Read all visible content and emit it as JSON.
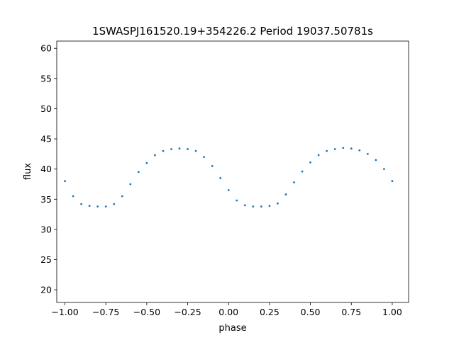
{
  "chart_data": {
    "type": "scatter",
    "title": "1SWASPJ161520.19+354226.2 Period 19037.50781s",
    "xlabel": "phase",
    "ylabel": "flux",
    "xlim": [
      -1.05,
      1.1
    ],
    "ylim": [
      17.9,
      61.2
    ],
    "xticks": [
      -1.0,
      -0.75,
      -0.5,
      -0.25,
      0.0,
      0.25,
      0.5,
      0.75,
      1.0
    ],
    "xtick_labels": [
      "−1.00",
      "−0.75",
      "−0.50",
      "−0.25",
      "0.00",
      "0.25",
      "0.50",
      "0.75",
      "1.00"
    ],
    "yticks": [
      20,
      25,
      30,
      35,
      40,
      45,
      50,
      55,
      60
    ],
    "ytick_labels": [
      "20",
      "25",
      "30",
      "35",
      "40",
      "45",
      "50",
      "55",
      "60"
    ],
    "grid": false,
    "marker_color": "#1f77b4",
    "series": [
      {
        "x": [
          -1.0,
          -0.95,
          -0.9,
          -0.85,
          -0.8,
          -0.75,
          -0.7,
          -0.65,
          -0.6,
          -0.55,
          -0.5,
          -0.45,
          -0.4,
          -0.35,
          -0.3,
          -0.25,
          -0.2,
          -0.15,
          -0.1,
          -0.05,
          0.0,
          0.05,
          0.1,
          0.15,
          0.2,
          0.25,
          0.3,
          0.35,
          0.4,
          0.45,
          0.5,
          0.55,
          0.6,
          0.65,
          0.7,
          0.75,
          0.8,
          0.85,
          0.9,
          0.95,
          1.0
        ],
        "y": [
          38.0,
          35.5,
          34.2,
          33.9,
          33.8,
          33.8,
          34.2,
          35.5,
          37.5,
          39.5,
          41.0,
          42.3,
          43.0,
          43.3,
          43.4,
          43.3,
          43.0,
          42.0,
          40.5,
          38.5,
          36.5,
          34.8,
          34.0,
          33.8,
          33.8,
          33.9,
          34.3,
          35.8,
          37.8,
          39.6,
          41.1,
          42.3,
          43.0,
          43.3,
          43.5,
          43.4,
          43.1,
          42.5,
          41.5,
          40.0,
          38.0
        ]
      }
    ]
  }
}
